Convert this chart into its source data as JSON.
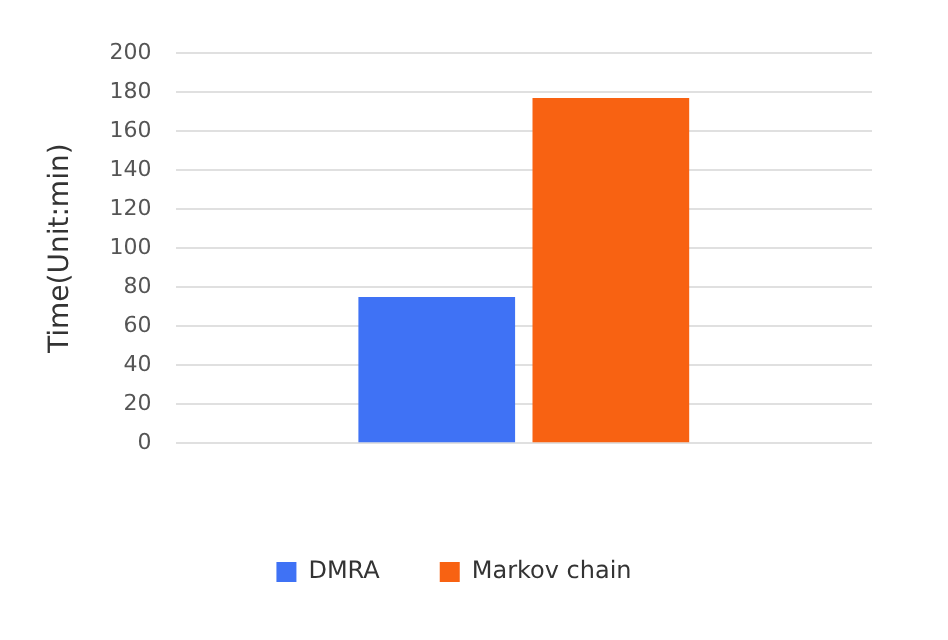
{
  "chart_data": {
    "type": "bar",
    "ylabel": "Time(Unit:min)",
    "categories": [
      null
    ],
    "series": [
      {
        "name": "DMRA",
        "color": "#3f72f5",
        "values": [
          75
        ]
      },
      {
        "name": "Markov chain",
        "color": "#f86212",
        "values": [
          177
        ]
      }
    ],
    "ylim": [
      0,
      200
    ],
    "yticks": [
      0,
      20,
      40,
      60,
      80,
      100,
      120,
      140,
      160,
      180,
      200
    ],
    "grid": "y",
    "legend": "bottom"
  }
}
